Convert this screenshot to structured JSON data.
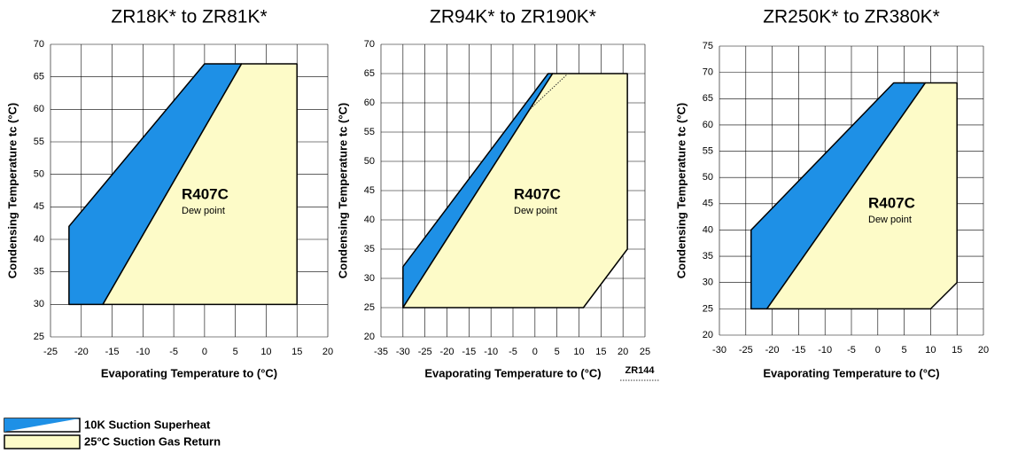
{
  "charts": [
    {
      "type": "area",
      "title": "ZR18K* to ZR81K*",
      "xlabel": "Evaporating Temperature to (°C)",
      "ylabel": "Condensing Temperature tc (°C)",
      "xlim": [
        -25,
        20
      ],
      "ylim": [
        25,
        70
      ],
      "xticks": [
        -25,
        -20,
        -15,
        -10,
        -5,
        0,
        5,
        10,
        15,
        20
      ],
      "yticks": [
        25,
        30,
        35,
        40,
        45,
        50,
        55,
        60,
        65,
        70
      ],
      "grid": true,
      "label": "R407C",
      "sublabel": "Dew point",
      "series": [
        {
          "color": "#1e90e6",
          "x": [
            -22,
            -22,
            0,
            6,
            -16.5
          ],
          "values": [
            30,
            42,
            67,
            67,
            30
          ]
        },
        {
          "color": "#fdfbc8",
          "x": [
            -16.5,
            6,
            15,
            15
          ],
          "values": [
            30,
            67,
            67,
            30
          ]
        }
      ]
    },
    {
      "type": "area",
      "title": "ZR94K* to ZR190K*",
      "xlabel": "Evaporating Temperature to (°C)",
      "ylabel": "Condensing Temperature tc (°C)",
      "xlim": [
        -35,
        25
      ],
      "ylim": [
        20,
        70
      ],
      "xticks": [
        -35,
        -30,
        -25,
        -20,
        -15,
        -10,
        -5,
        0,
        5,
        10,
        15,
        20,
        25
      ],
      "yticks": [
        20,
        25,
        30,
        35,
        40,
        45,
        50,
        55,
        60,
        65,
        70
      ],
      "grid": true,
      "label": "R407C",
      "sublabel": "Dew point",
      "series": [
        {
          "color": "#1e90e6",
          "x": [
            -30,
            -30,
            3,
            4
          ],
          "values": [
            25,
            32,
            65,
            65
          ]
        },
        {
          "color": "#fdfbc8",
          "x": [
            -30,
            4,
            21,
            21,
            11
          ],
          "values": [
            25,
            65,
            65,
            35,
            25
          ]
        },
        {
          "name": "ZR144",
          "style": "dotted",
          "color": "#333333",
          "x": [
            -1,
            7.5
          ],
          "values": [
            59,
            65
          ]
        }
      ]
    },
    {
      "type": "area",
      "title": "ZR250K* to ZR380K*",
      "xlabel": "Evaporating Temperature to (°C)",
      "ylabel": "Condensing Temperature tc (°C)",
      "xlim": [
        -30,
        20
      ],
      "ylim": [
        20,
        75
      ],
      "xticks": [
        -30,
        -25,
        -20,
        -15,
        -10,
        -5,
        0,
        5,
        10,
        15,
        20
      ],
      "yticks": [
        20,
        25,
        30,
        35,
        40,
        45,
        50,
        55,
        60,
        65,
        70,
        75
      ],
      "grid": true,
      "label": "R407C",
      "sublabel": "Dew point",
      "series": [
        {
          "color": "#1e90e6",
          "x": [
            -24,
            -24,
            3,
            9,
            -21
          ],
          "values": [
            25,
            40,
            68,
            68,
            25
          ]
        },
        {
          "color": "#fdfbc8",
          "x": [
            -21,
            9,
            15,
            15,
            10
          ],
          "values": [
            25,
            68,
            68,
            30,
            25
          ]
        }
      ]
    }
  ],
  "legend": [
    {
      "name": "10K Suction Superheat",
      "color": "#1e90e6"
    },
    {
      "name": "25°C Suction Gas Return",
      "color": "#fdfbc8"
    }
  ]
}
